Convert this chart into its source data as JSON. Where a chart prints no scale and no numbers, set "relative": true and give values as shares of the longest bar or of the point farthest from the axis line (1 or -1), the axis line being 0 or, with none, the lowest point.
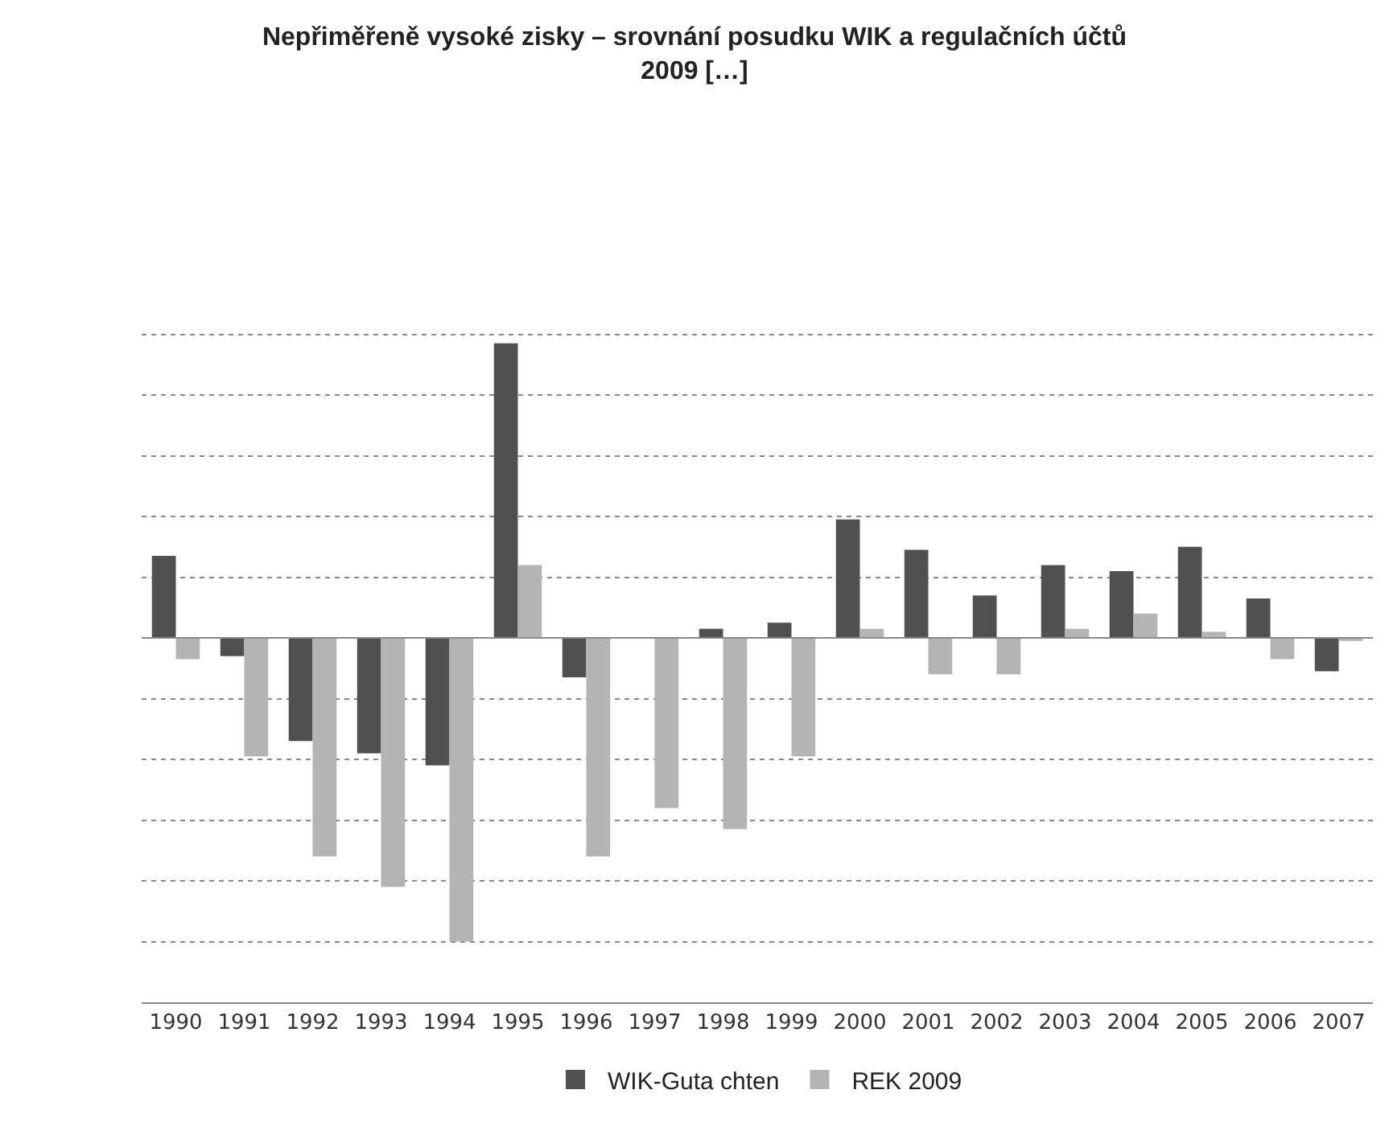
{
  "chart_data": {
    "type": "bar",
    "title": "Nepřiměřeně vysoké zisky – srovnání posudku WIK a regulačních účtů\n2009 […]",
    "categories": [
      "1990",
      "1991",
      "1992",
      "1993",
      "1994",
      "1995",
      "1996",
      "1997",
      "1998",
      "1999",
      "2000",
      "2001",
      "2002",
      "2003",
      "2004",
      "2005",
      "2006",
      "2007"
    ],
    "relative": true,
    "grid": "y",
    "legend": "bottom",
    "series": [
      {
        "name": "WIK-Guta chten",
        "color": "#505050",
        "values": [
          0.27,
          -0.06,
          -0.34,
          -0.38,
          -0.42,
          0.97,
          -0.13,
          0,
          0.03,
          0.05,
          0.39,
          0.29,
          0.14,
          0.24,
          0.22,
          0.3,
          0.13,
          -0.11
        ]
      },
      {
        "name": "REK 2009",
        "color": "#b4b4b4",
        "values": [
          -0.07,
          -0.39,
          -0.72,
          -0.82,
          -1,
          0.24,
          -0.72,
          -0.56,
          -0.63,
          -0.39,
          0.03,
          -0.12,
          -0.12,
          0.03,
          0.08,
          0.02,
          -0.07,
          -0.01
        ]
      }
    ]
  }
}
